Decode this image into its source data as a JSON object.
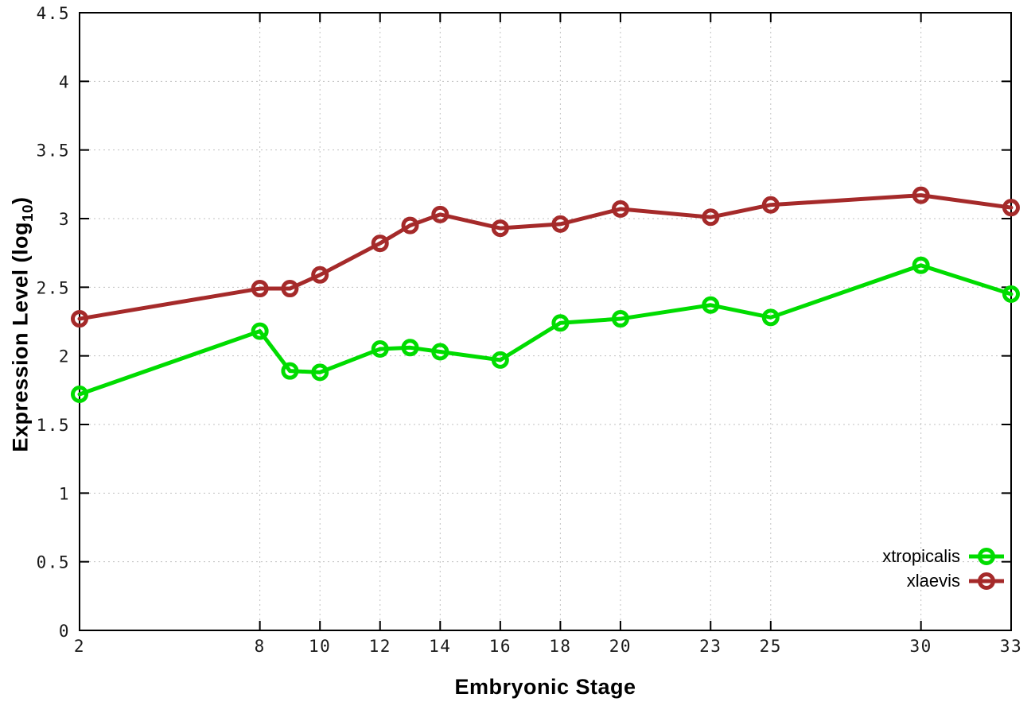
{
  "chart_data": {
    "type": "line",
    "title": "",
    "xlabel": "Embryonic Stage",
    "ylabel_main": "Expression Level (log",
    "ylabel_sub": "10",
    "ylabel_end": ")",
    "x": [
      2,
      8,
      9,
      10,
      12,
      13,
      14,
      16,
      18,
      20,
      23,
      25,
      30,
      33
    ],
    "series": [
      {
        "name": "xtropicalis",
        "color": "#00dc00",
        "values": [
          1.72,
          2.18,
          1.89,
          1.88,
          2.05,
          2.06,
          2.03,
          1.97,
          2.24,
          2.27,
          2.37,
          2.28,
          2.66,
          2.45
        ]
      },
      {
        "name": "xlaevis",
        "color": "#a52a2a",
        "values": [
          2.27,
          2.49,
          2.49,
          2.59,
          2.82,
          2.95,
          3.03,
          2.93,
          2.96,
          3.07,
          3.01,
          3.1,
          3.17,
          3.08
        ]
      }
    ],
    "xlim": [
      2,
      33
    ],
    "ylim": [
      0,
      4.5
    ],
    "xticks": [
      2,
      8,
      10,
      12,
      14,
      16,
      18,
      20,
      23,
      25,
      30,
      33
    ],
    "xtick_labels": [
      "2",
      "8",
      "10",
      "12",
      "14",
      "16",
      "18",
      "20",
      "23",
      "25",
      "30",
      "33"
    ],
    "yticks": [
      0,
      0.5,
      1,
      1.5,
      2,
      2.5,
      3,
      3.5,
      4,
      4.5
    ],
    "ytick_labels": [
      "0",
      "0.5",
      "1",
      "1.5",
      "2",
      "2.5",
      "3",
      "3.5",
      "4",
      "4.5"
    ],
    "grid": "dotted",
    "grid_color": "#c0c0c0",
    "border_color": "#000000",
    "tick_label_color": "#1a1a1a",
    "marker": "open-circle",
    "legend_position": "bottom-right"
  }
}
